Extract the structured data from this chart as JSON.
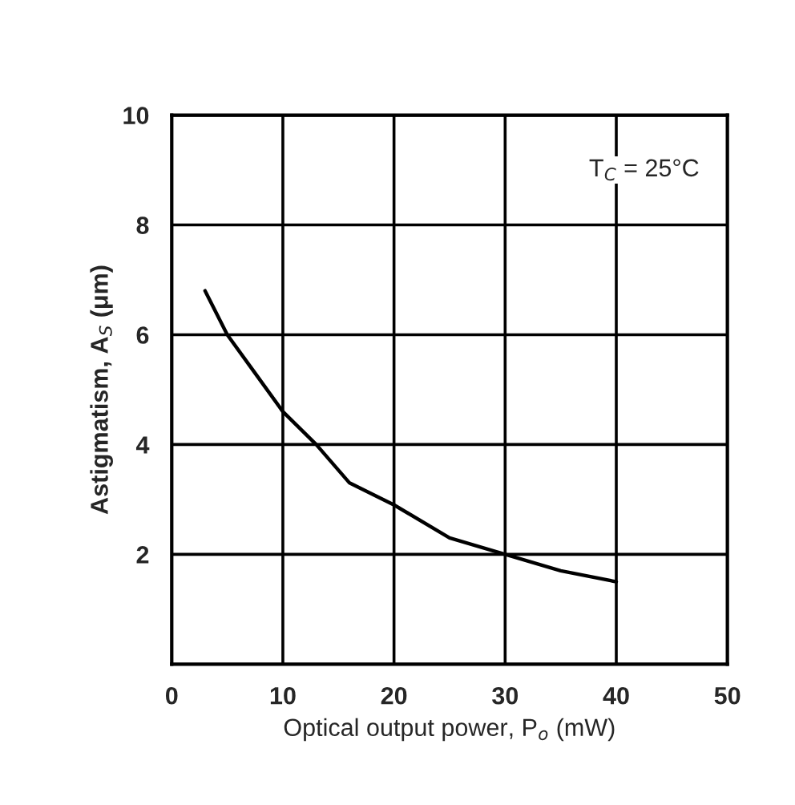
{
  "chart_data": {
    "type": "line",
    "xlabel": "Optical output power, P$_{o}$ (mW)",
    "ylabel": "Astigmatism, A$_{S}$ (μm)",
    "annotations": [
      "T$_{C}$ = 25°C"
    ],
    "series": [
      {
        "color": "#000000",
        "x": [
          3,
          5,
          7.5,
          10,
          13,
          16,
          20,
          25,
          30,
          35,
          40
        ],
        "values": [
          6.8,
          6.0,
          5.3,
          4.6,
          4.0,
          3.3,
          2.9,
          2.3,
          2.0,
          1.7,
          1.5
        ]
      }
    ],
    "xlim": [
      0,
      50
    ],
    "xticks": [
      0,
      10,
      20,
      30,
      40,
      50
    ],
    "ylim": [
      0,
      10
    ],
    "yticks": [
      2,
      4,
      6,
      8,
      10
    ],
    "grid": true,
    "marker": "none",
    "line_style": "solid"
  }
}
